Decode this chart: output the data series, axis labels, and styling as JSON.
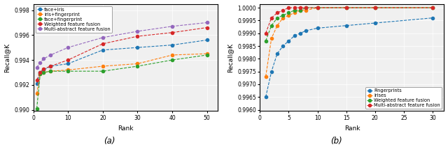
{
  "fig_width": 6.4,
  "fig_height": 2.11,
  "dpi": 100,
  "left": {
    "xlabel": "Rank",
    "ylabel": "Recall@K",
    "ylim": [
      0.9899,
      0.9985
    ],
    "yticks": [
      0.99,
      0.992,
      0.994,
      0.996,
      0.998
    ],
    "xticks": [
      0,
      10,
      20,
      30,
      40,
      50
    ],
    "xlim": [
      0,
      53
    ],
    "label_a": "(a)",
    "series": [
      {
        "label": "face+iris",
        "color": "#1f77b4",
        "x": [
          1,
          2,
          3,
          5,
          10,
          20,
          30,
          40,
          50
        ],
        "y": [
          0.9921,
          0.993,
          0.9932,
          0.9935,
          0.9937,
          0.9948,
          0.995,
          0.9952,
          0.9956
        ]
      },
      {
        "label": "iris+fingerprint",
        "color": "#ff7f0e",
        "x": [
          1,
          2,
          3,
          5,
          10,
          20,
          30,
          40,
          50
        ],
        "y": [
          0.9913,
          0.9929,
          0.993,
          0.9931,
          0.9932,
          0.9935,
          0.9937,
          0.9944,
          0.9945
        ]
      },
      {
        "label": "face+fingerprint",
        "color": "#2ca02c",
        "x": [
          1,
          2,
          3,
          5,
          10,
          20,
          30,
          40,
          50
        ],
        "y": [
          0.9901,
          0.9929,
          0.993,
          0.9931,
          0.9931,
          0.9931,
          0.9935,
          0.994,
          0.9944
        ]
      },
      {
        "label": "Weighted feature fusion",
        "color": "#d62728",
        "x": [
          1,
          2,
          3,
          5,
          10,
          20,
          30,
          40,
          50
        ],
        "y": [
          0.9924,
          0.993,
          0.9933,
          0.9935,
          0.994,
          0.9953,
          0.9959,
          0.9962,
          0.9966
        ]
      },
      {
        "label": "Multi-abstract feature fusion",
        "color": "#9467bd",
        "x": [
          1,
          2,
          3,
          5,
          10,
          20,
          30,
          40,
          50
        ],
        "y": [
          0.9934,
          0.9938,
          0.9941,
          0.9944,
          0.995,
          0.9958,
          0.9963,
          0.9967,
          0.997
        ]
      }
    ]
  },
  "right": {
    "xlabel": "Rank",
    "ylabel": "Recall@K",
    "ylim": [
      0.99595,
      1.00015
    ],
    "yticks": [
      0.996,
      0.9965,
      0.997,
      0.9975,
      0.998,
      0.9985,
      0.999,
      0.9995,
      1.0
    ],
    "xticks": [
      0,
      5,
      10,
      15,
      20,
      25,
      30
    ],
    "xlim": [
      0,
      32
    ],
    "label_b": "(b)",
    "series": [
      {
        "label": "Fingerprints",
        "color": "#1f77b4",
        "x": [
          1,
          2,
          3,
          4,
          5,
          6,
          7,
          8,
          10,
          15,
          20,
          30
        ],
        "y": [
          0.9965,
          0.9975,
          0.9982,
          0.9985,
          0.9987,
          0.9989,
          0.999,
          0.9991,
          0.9992,
          0.9993,
          0.9994,
          0.9996
        ]
      },
      {
        "label": "Irises",
        "color": "#ff7f0e",
        "x": [
          1,
          2,
          3,
          4,
          5,
          6,
          7,
          8,
          10,
          15,
          20,
          30
        ],
        "y": [
          0.9973,
          0.9988,
          0.9993,
          0.9996,
          0.9997,
          0.9998,
          0.9999,
          0.9999,
          1.0,
          1.0,
          1.0,
          1.0
        ]
      },
      {
        "label": "Weighted feature fusion",
        "color": "#2ca02c",
        "x": [
          1,
          2,
          3,
          4,
          5,
          6,
          7,
          8,
          10,
          15,
          20,
          30
        ],
        "y": [
          0.9987,
          0.9993,
          0.9996,
          0.9997,
          0.9998,
          0.9999,
          0.9999,
          1.0,
          1.0,
          1.0,
          1.0,
          1.0
        ]
      },
      {
        "label": "Multi-abstract feature fusion",
        "color": "#d62728",
        "x": [
          1,
          2,
          3,
          4,
          5,
          6,
          7,
          8,
          10,
          15,
          20,
          30
        ],
        "y": [
          0.999,
          0.9996,
          0.9998,
          0.9999,
          1.0,
          1.0,
          1.0,
          1.0,
          1.0,
          1.0,
          1.0,
          1.0
        ]
      }
    ]
  },
  "bg_color": "#f0f0f0",
  "grid_color": "white",
  "font_size_tick": 5.5,
  "font_size_label": 6.5,
  "font_size_legend": 4.8,
  "font_size_caption": 8.5,
  "marker_size": 3.0,
  "line_width": 0.8
}
